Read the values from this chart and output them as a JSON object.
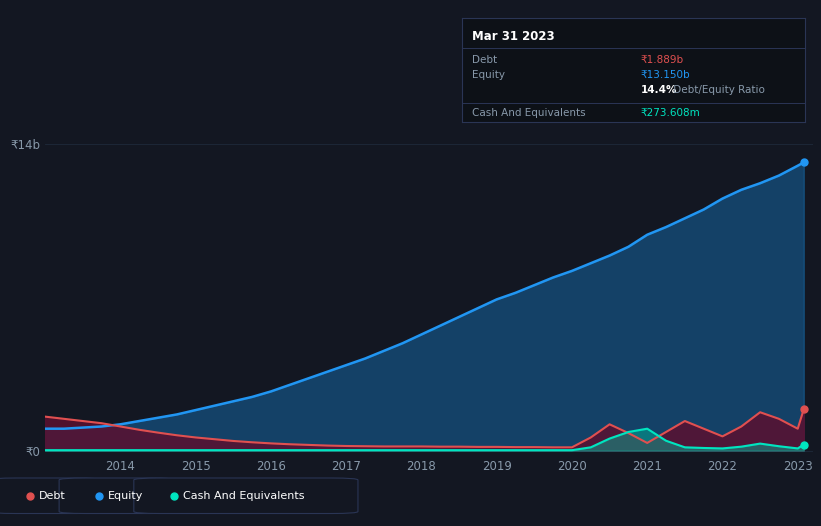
{
  "bg_color": "#131722",
  "chart_bg": "#0d1117",
  "equity_color": "#2196f3",
  "debt_color": "#e05050",
  "cash_color": "#00e5c0",
  "grid_color": "#1e2a3a",
  "info_box_bg": "#0d1117",
  "info_box_border": "#2a3050",
  "xtick_years": [
    2014,
    2015,
    2016,
    2017,
    2018,
    2019,
    2020,
    2021,
    2022,
    2023
  ],
  "ytick_labels": [
    "₹0",
    "₹14b"
  ],
  "info_title": "Mar 31 2023",
  "debt_label": "Debt",
  "debt_value": "₹1.889b",
  "equity_label": "Equity",
  "equity_value": "₹13.150b",
  "ratio_bold": "14.4%",
  "ratio_rest": " Debt/Equity Ratio",
  "cash_label": "Cash And Equivalents",
  "cash_value": "₹273.608m",
  "years": [
    2013.0,
    2013.25,
    2013.5,
    2013.75,
    2014.0,
    2014.25,
    2014.5,
    2014.75,
    2015.0,
    2015.25,
    2015.5,
    2015.75,
    2016.0,
    2016.25,
    2016.5,
    2016.75,
    2017.0,
    2017.25,
    2017.5,
    2017.75,
    2018.0,
    2018.25,
    2018.5,
    2018.75,
    2019.0,
    2019.25,
    2019.5,
    2019.75,
    2020.0,
    2020.25,
    2020.5,
    2020.75,
    2021.0,
    2021.25,
    2021.5,
    2021.75,
    2022.0,
    2022.25,
    2022.5,
    2022.75,
    2023.0,
    2023.08
  ],
  "equity_values": [
    1000000000.0,
    1000000000.0,
    1050000000.0,
    1100000000.0,
    1200000000.0,
    1350000000.0,
    1500000000.0,
    1650000000.0,
    1850000000.0,
    2050000000.0,
    2250000000.0,
    2450000000.0,
    2700000000.0,
    3000000000.0,
    3300000000.0,
    3600000000.0,
    3900000000.0,
    4200000000.0,
    4550000000.0,
    4900000000.0,
    5300000000.0,
    5700000000.0,
    6100000000.0,
    6500000000.0,
    6900000000.0,
    7200000000.0,
    7550000000.0,
    7900000000.0,
    8200000000.0,
    8550000000.0,
    8900000000.0,
    9300000000.0,
    9850000000.0,
    10200000000.0,
    10600000000.0,
    11000000000.0,
    11500000000.0,
    11900000000.0,
    12200000000.0,
    12550000000.0,
    13000000000.0,
    13150000000.0
  ],
  "debt_values": [
    1550000000.0,
    1450000000.0,
    1350000000.0,
    1250000000.0,
    1100000000.0,
    950000000.0,
    820000000.0,
    700000000.0,
    600000000.0,
    520000000.0,
    440000000.0,
    380000000.0,
    330000000.0,
    290000000.0,
    260000000.0,
    230000000.0,
    210000000.0,
    200000000.0,
    190000000.0,
    190000000.0,
    190000000.0,
    180000000.0,
    180000000.0,
    170000000.0,
    170000000.0,
    160000000.0,
    160000000.0,
    150000000.0,
    150000000.0,
    600000000.0,
    1200000000.0,
    800000000.0,
    350000000.0,
    850000000.0,
    1350000000.0,
    1000000000.0,
    650000000.0,
    1100000000.0,
    1750000000.0,
    1450000000.0,
    1000000000.0,
    1889000000.0
  ],
  "cash_values": [
    20000000.0,
    20000000.0,
    20000000.0,
    20000000.0,
    20000000.0,
    20000000.0,
    20000000.0,
    20000000.0,
    20000000.0,
    20000000.0,
    20000000.0,
    20000000.0,
    20000000.0,
    20000000.0,
    20000000.0,
    20000000.0,
    20000000.0,
    20000000.0,
    20000000.0,
    20000000.0,
    20000000.0,
    20000000.0,
    20000000.0,
    20000000.0,
    20000000.0,
    20000000.0,
    20000000.0,
    20000000.0,
    20000000.0,
    150000000.0,
    550000000.0,
    850000000.0,
    1000000000.0,
    450000000.0,
    150000000.0,
    120000000.0,
    100000000.0,
    180000000.0,
    320000000.0,
    200000000.0,
    100000000.0,
    274000000.0
  ]
}
